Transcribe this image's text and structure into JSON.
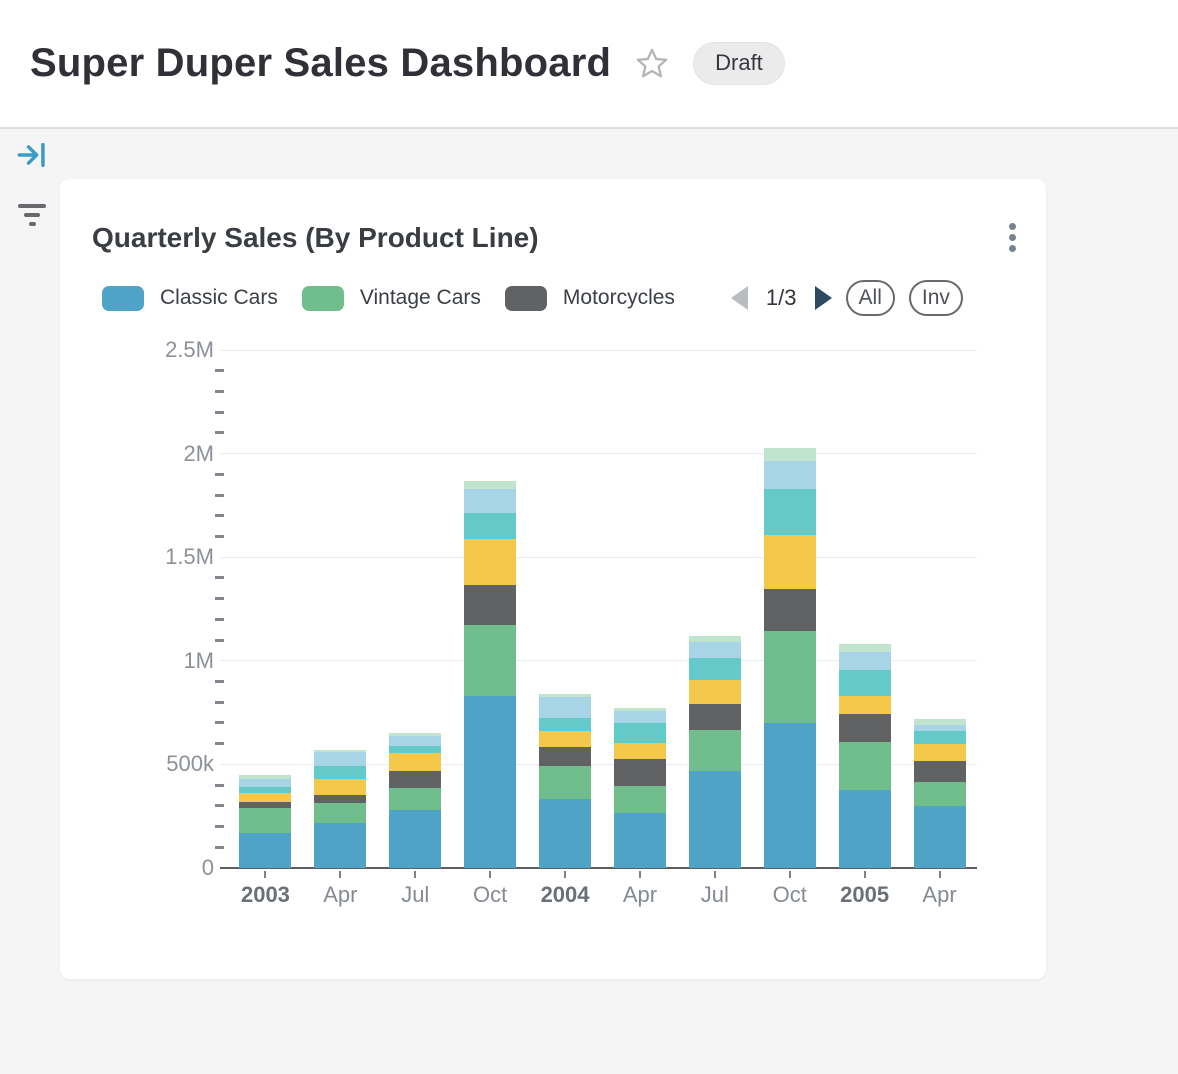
{
  "header": {
    "title": "Super Duper Sales Dashboard",
    "status_badge": "Draft"
  },
  "card": {
    "title": "Quarterly Sales (By Product Line)",
    "legend_pager": {
      "label": "1/3",
      "prev_enabled": false,
      "next_enabled": true
    },
    "actions": {
      "all_label": "All",
      "inv_label": "Inv"
    }
  },
  "chart_data": {
    "type": "bar",
    "stacked": true,
    "title": "Quarterly Sales (By Product Line)",
    "categories": [
      "2003",
      "Apr",
      "Jul",
      "Oct",
      "2004",
      "Apr",
      "Jul",
      "Oct",
      "2005",
      "Apr"
    ],
    "emphasized_category_indexes": [
      0,
      4,
      8
    ],
    "y_axis": {
      "min_k": 0,
      "max_k": 2500,
      "major_tick_labels": [
        "0",
        "500k",
        "1M",
        "1.5M",
        "2M",
        "2.5M"
      ],
      "major_step_k": 500,
      "minor_tick_step_k": 100,
      "gridlines": true
    },
    "values_unit": "sales value in thousands (k), estimated from bar heights",
    "legend_pages_total": 3,
    "legend_visible_page": 1,
    "series": [
      {
        "name": "Classic Cars",
        "color": "#4FA3C6",
        "legend_page": 1,
        "values_k": [
          170,
          215,
          280,
          830,
          335,
          265,
          470,
          700,
          375,
          300
        ]
      },
      {
        "name": "Vintage Cars",
        "color": "#6FBE8B",
        "legend_page": 1,
        "values_k": [
          120,
          97,
          106,
          344,
          155,
          132,
          194,
          444,
          232,
          113
        ]
      },
      {
        "name": "Motorcycles",
        "color": "#616264",
        "legend_page": 1,
        "values_k": [
          30,
          39,
          84,
          194,
          94,
          129,
          126,
          205,
          134,
          102
        ]
      },
      {
        "name": "(legend hidden - yellow series)",
        "color": "#F3C84B",
        "legend_page": 2,
        "values_k": [
          42,
          81,
          84,
          218,
          77,
          77,
          118,
          258,
          89,
          85
        ]
      },
      {
        "name": "(legend hidden - teal series)",
        "color": "#63C9C9",
        "legend_page": 2,
        "values_k": [
          27,
          61,
          37,
          129,
          65,
          97,
          108,
          223,
          126,
          60
        ]
      },
      {
        "name": "(legend hidden - light blue series)",
        "color": "#A7D4E6",
        "legend_page": 2,
        "values_k": [
          43,
          65,
          44,
          116,
          97,
          56,
          73,
          132,
          87,
          32
        ]
      },
      {
        "name": "(legend hidden - pale green series)",
        "color": "#C1E4CE",
        "legend_page": 3,
        "values_k": [
          16,
          11,
          16,
          37,
          19,
          16,
          29,
          65,
          37,
          27
        ]
      }
    ]
  }
}
